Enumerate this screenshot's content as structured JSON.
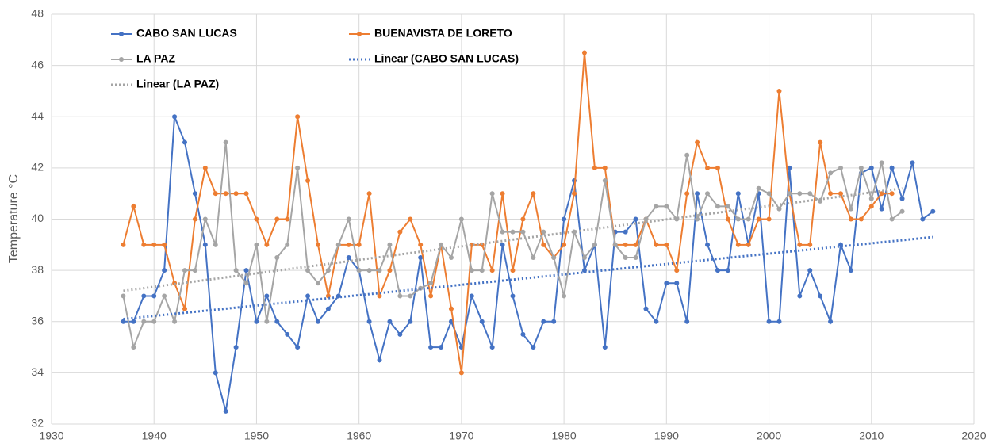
{
  "chart_data": {
    "type": "line",
    "y_label": "Temperature  °C",
    "xlim": [
      1930,
      2020
    ],
    "xticks": [
      1930,
      1940,
      1950,
      1960,
      1970,
      1980,
      1990,
      2000,
      2010,
      2020
    ],
    "ylim": [
      32,
      48
    ],
    "yticks": [
      32,
      34,
      36,
      38,
      40,
      42,
      44,
      46,
      48
    ],
    "grid": true,
    "series": [
      {
        "name": "CABO SAN LUCAS",
        "color": "#4472c4",
        "style": "solid",
        "x": [
          1937,
          1938,
          1939,
          1940,
          1941,
          1942,
          1943,
          1944,
          1945,
          1946,
          1947,
          1948,
          1949,
          1950,
          1951,
          1952,
          1953,
          1954,
          1955,
          1956,
          1957,
          1958,
          1959,
          1960,
          1961,
          1962,
          1963,
          1964,
          1965,
          1966,
          1967,
          1968,
          1969,
          1970,
          1971,
          1972,
          1973,
          1974,
          1975,
          1976,
          1977,
          1978,
          1979,
          1980,
          1981,
          1982,
          1983,
          1984,
          1985,
          1986,
          1987,
          1988,
          1989,
          1990,
          1991,
          1992,
          1993,
          1994,
          1995,
          1996,
          1997,
          1998,
          1999,
          2000,
          2001,
          2002,
          2003,
          2004,
          2005,
          2006,
          2007,
          2008,
          2009,
          2010,
          2011,
          2012,
          2013,
          2014,
          2015,
          2016
        ],
        "values": [
          36,
          36,
          37,
          37,
          38,
          44,
          43,
          41,
          39,
          34,
          32.5,
          35,
          38,
          36,
          37,
          36,
          35.5,
          35,
          37,
          36,
          36.5,
          37,
          38.5,
          38,
          36,
          34.5,
          36,
          35.5,
          36,
          38.5,
          35,
          35,
          36,
          35,
          37,
          36,
          35,
          39,
          37,
          35.5,
          35,
          36,
          36,
          40,
          41.5,
          38,
          39,
          35,
          39.5,
          39.5,
          40,
          36.5,
          36,
          37.5,
          37.5,
          36,
          41,
          39,
          38,
          38,
          41,
          39,
          41,
          36,
          36,
          42,
          37,
          38,
          37,
          36,
          39,
          38,
          41.8,
          42,
          40.4,
          42,
          40.8,
          42.2,
          40,
          40.3
        ]
      },
      {
        "name": "BUENAVISTA DE LORETO",
        "color": "#ed7d31",
        "style": "solid",
        "x": [
          1937,
          1938,
          1939,
          1940,
          1941,
          1942,
          1943,
          1944,
          1945,
          1946,
          1947,
          1948,
          1949,
          1950,
          1951,
          1952,
          1953,
          1954,
          1955,
          1956,
          1957,
          1958,
          1959,
          1960,
          1961,
          1962,
          1963,
          1964,
          1965,
          1966,
          1967,
          1968,
          1969,
          1970,
          1971,
          1972,
          1973,
          1974,
          1975,
          1976,
          1977,
          1978,
          1979,
          1980,
          1981,
          1982,
          1983,
          1984,
          1985,
          1986,
          1987,
          1988,
          1989,
          1990,
          1991,
          1992,
          1993,
          1994,
          1995,
          1996,
          1997,
          1998,
          1999,
          2000,
          2001,
          2002,
          2003,
          2004,
          2005,
          2006,
          2007,
          2008,
          2009,
          2010,
          2011,
          2012
        ],
        "values": [
          39,
          40.5,
          39,
          39,
          39,
          37.5,
          36.5,
          40,
          42,
          41,
          41,
          41,
          41,
          40,
          39,
          40,
          40,
          44,
          41.5,
          39,
          37,
          39,
          39,
          39,
          41,
          37,
          38,
          39.5,
          40,
          39,
          37,
          39,
          36.5,
          34,
          39,
          39,
          38,
          41,
          38,
          40,
          41,
          39,
          38.5,
          39,
          41,
          46.5,
          42,
          42,
          39,
          39,
          39,
          40,
          39,
          39,
          38,
          41,
          43,
          42,
          42,
          40,
          39,
          39,
          40,
          40,
          45,
          41,
          39,
          39,
          43,
          41,
          41,
          40,
          40,
          40.5,
          41,
          41
        ]
      },
      {
        "name": "LA PAZ",
        "color": "#a5a5a5",
        "style": "solid",
        "x": [
          1937,
          1938,
          1939,
          1940,
          1941,
          1942,
          1943,
          1944,
          1945,
          1946,
          1947,
          1948,
          1949,
          1950,
          1951,
          1952,
          1953,
          1954,
          1955,
          1956,
          1957,
          1958,
          1959,
          1960,
          1961,
          1962,
          1963,
          1964,
          1965,
          1966,
          1967,
          1968,
          1969,
          1970,
          1971,
          1972,
          1973,
          1974,
          1975,
          1976,
          1977,
          1978,
          1979,
          1980,
          1981,
          1982,
          1983,
          1984,
          1985,
          1986,
          1987,
          1988,
          1989,
          1990,
          1991,
          1992,
          1993,
          1994,
          1995,
          1996,
          1997,
          1998,
          1999,
          2000,
          2001,
          2002,
          2003,
          2004,
          2005,
          2006,
          2007,
          2008,
          2009,
          2010,
          2011,
          2012,
          2013
        ],
        "values": [
          37,
          35,
          36,
          36,
          37,
          36,
          38,
          38,
          40,
          39,
          43,
          38,
          37.5,
          39,
          36,
          38.5,
          39,
          42,
          38,
          37.5,
          38,
          39,
          40,
          38,
          38,
          38,
          39,
          37,
          37,
          37.3,
          37.5,
          39,
          38.5,
          40,
          38,
          38,
          41,
          39.5,
          39.5,
          39.5,
          38.5,
          39.5,
          38.5,
          37,
          39.5,
          38.5,
          39,
          41.5,
          39,
          38.5,
          38.5,
          40,
          40.5,
          40.5,
          40,
          42.5,
          40,
          41,
          40.5,
          40.5,
          40,
          40,
          41.2,
          41,
          40.4,
          41,
          41,
          41,
          40.7,
          41.8,
          42,
          40.4,
          42,
          40.8,
          42.2,
          40,
          40.3
        ]
      },
      {
        "name": "Linear (CABO SAN LUCAS)",
        "color": "#4472c4",
        "style": "dotted",
        "x": [
          1937,
          2016
        ],
        "values": [
          36.1,
          39.3
        ]
      },
      {
        "name": "Linear (LA PAZ)",
        "color": "#a5a5a5",
        "style": "dotted",
        "x": [
          1937,
          2013
        ],
        "values": [
          37.2,
          41.2
        ]
      }
    ]
  }
}
